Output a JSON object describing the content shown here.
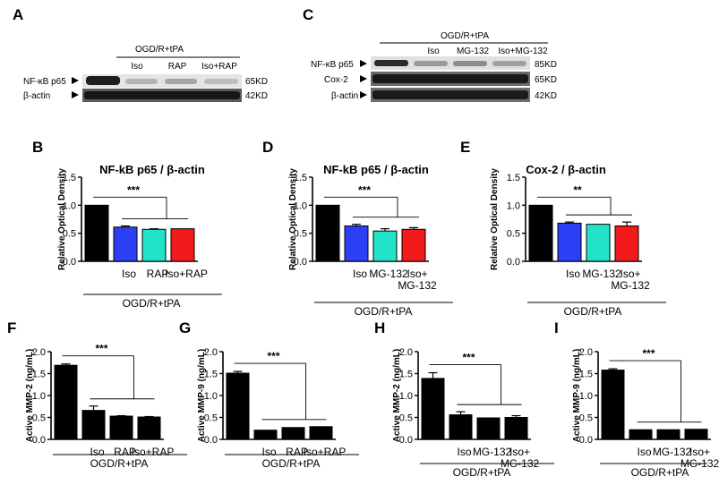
{
  "colors": {
    "iso": "#2b3ff5",
    "mg": "#22e3c7",
    "rap": "#f21a1a",
    "black": "#000000"
  },
  "blots": [
    {
      "panel": "A",
      "group": "OGD/R+tPA",
      "lanes": [
        "Iso",
        "RAP",
        "Iso+RAP"
      ],
      "rows": [
        {
          "protein": "NF-κB p65",
          "size": "65KD"
        },
        {
          "protein": "β-actin",
          "size": "42KD"
        }
      ]
    },
    {
      "panel": "C",
      "group": "OGD/R+tPA",
      "lanes": [
        "Iso",
        "MG-132",
        "Iso+MG-132"
      ],
      "rows": [
        {
          "protein": "NF-κB p65",
          "size": "85KD"
        },
        {
          "protein": "Cox-2",
          "size": "65KD"
        },
        {
          "protein": "β-actin",
          "size": "42KD"
        }
      ]
    }
  ],
  "chart_data": [
    {
      "panel": "B",
      "type": "bar",
      "title": "NF-kB p65 / β-actin",
      "ylabel": "Relative Optical Density",
      "ylim": [
        0,
        1.5
      ],
      "yticks": [
        "0.0",
        "0.5",
        "1.0",
        "1.5"
      ],
      "categories": [
        "",
        "Iso",
        "RAP",
        "Iso+RAP"
      ],
      "values": [
        1.0,
        0.61,
        0.57,
        0.58
      ],
      "errors": [
        0,
        0.02,
        0.01,
        0.0
      ],
      "colors": [
        "black",
        "iso",
        "mg",
        "rap"
      ],
      "group_label": "OGD/R+tPA",
      "significance": "***"
    },
    {
      "panel": "D",
      "type": "bar",
      "title": "NF-kB p65 / β-actin",
      "ylabel": "Relative Optical Density",
      "ylim": [
        0,
        1.5
      ],
      "yticks": [
        "0.0",
        "0.5",
        "1.0",
        "1.5"
      ],
      "categories": [
        "",
        "Iso",
        "MG-132",
        "Iso+\nMG-132"
      ],
      "values": [
        1.0,
        0.63,
        0.54,
        0.57
      ],
      "errors": [
        0,
        0.03,
        0.04,
        0.03
      ],
      "colors": [
        "black",
        "iso",
        "mg",
        "rap"
      ],
      "group_label": "OGD/R+tPA",
      "significance": "***"
    },
    {
      "panel": "E",
      "type": "bar",
      "title": "Cox-2 / β-actin",
      "ylabel": "Relative Optical Density",
      "ylim": [
        0,
        1.5
      ],
      "yticks": [
        "0.0",
        "0.5",
        "1.0",
        "1.5"
      ],
      "categories": [
        "",
        "Iso",
        "MG-132",
        "Iso+\nMG-132"
      ],
      "values": [
        1.0,
        0.68,
        0.66,
        0.63
      ],
      "errors": [
        0,
        0.02,
        0.0,
        0.07
      ],
      "colors": [
        "black",
        "iso",
        "mg",
        "rap"
      ],
      "group_label": "OGD/R+tPA",
      "significance": "**"
    },
    {
      "panel": "F",
      "type": "bar",
      "title": "",
      "ylabel": "Active MMP-2 (ng/mL)",
      "ylim": [
        0,
        2.0
      ],
      "yticks": [
        "0.0",
        "0.5",
        "1.0",
        "1.5",
        "2.0"
      ],
      "categories": [
        "",
        "Iso",
        "RAP",
        "Iso+RAP"
      ],
      "values": [
        1.69,
        0.66,
        0.53,
        0.51
      ],
      "errors": [
        0.03,
        0.1,
        0.01,
        0.01
      ],
      "colors": [
        "black",
        "black",
        "black",
        "black"
      ],
      "group_label": "OGD/R+tPA",
      "significance": "***"
    },
    {
      "panel": "G",
      "type": "bar",
      "title": "",
      "ylabel": "Active MMP-9 (ng/mL)",
      "ylim": [
        0,
        2.0
      ],
      "yticks": [
        "0.0",
        "0.5",
        "1.0",
        "1.5",
        "2.0"
      ],
      "categories": [
        "",
        "Iso",
        "RAP",
        "Iso+RAP"
      ],
      "values": [
        1.51,
        0.21,
        0.27,
        0.29
      ],
      "errors": [
        0.04,
        0.0,
        0.0,
        0.0
      ],
      "colors": [
        "black",
        "black",
        "black",
        "black"
      ],
      "group_label": "OGD/R+tPA",
      "significance": "***"
    },
    {
      "panel": "H",
      "type": "bar",
      "title": "",
      "ylabel": "Active MMP-2 (ng/mL)",
      "ylim": [
        0,
        2.0
      ],
      "yticks": [
        "0.0",
        "0.5",
        "1.0",
        "1.5",
        "2.0"
      ],
      "categories": [
        "",
        "Iso",
        "MG-132",
        "Iso+\nMG-132"
      ],
      "values": [
        1.39,
        0.56,
        0.49,
        0.5
      ],
      "errors": [
        0.13,
        0.07,
        0.0,
        0.04
      ],
      "colors": [
        "black",
        "black",
        "black",
        "black"
      ],
      "group_label": "OGD/R+tPA",
      "significance": "***"
    },
    {
      "panel": "I",
      "type": "bar",
      "title": "",
      "ylabel": "Active MMP-9 (ng/mL)",
      "ylim": [
        0,
        2.0
      ],
      "yticks": [
        "0.0",
        "0.5",
        "1.0",
        "1.5",
        "2.0"
      ],
      "categories": [
        "",
        "Iso",
        "MG-132",
        "Iso+\nMG-132"
      ],
      "values": [
        1.58,
        0.22,
        0.22,
        0.23
      ],
      "errors": [
        0.03,
        0.0,
        0.0,
        0.0
      ],
      "colors": [
        "black",
        "black",
        "black",
        "black"
      ],
      "group_label": "OGD/R+tPA",
      "significance": "***"
    }
  ]
}
